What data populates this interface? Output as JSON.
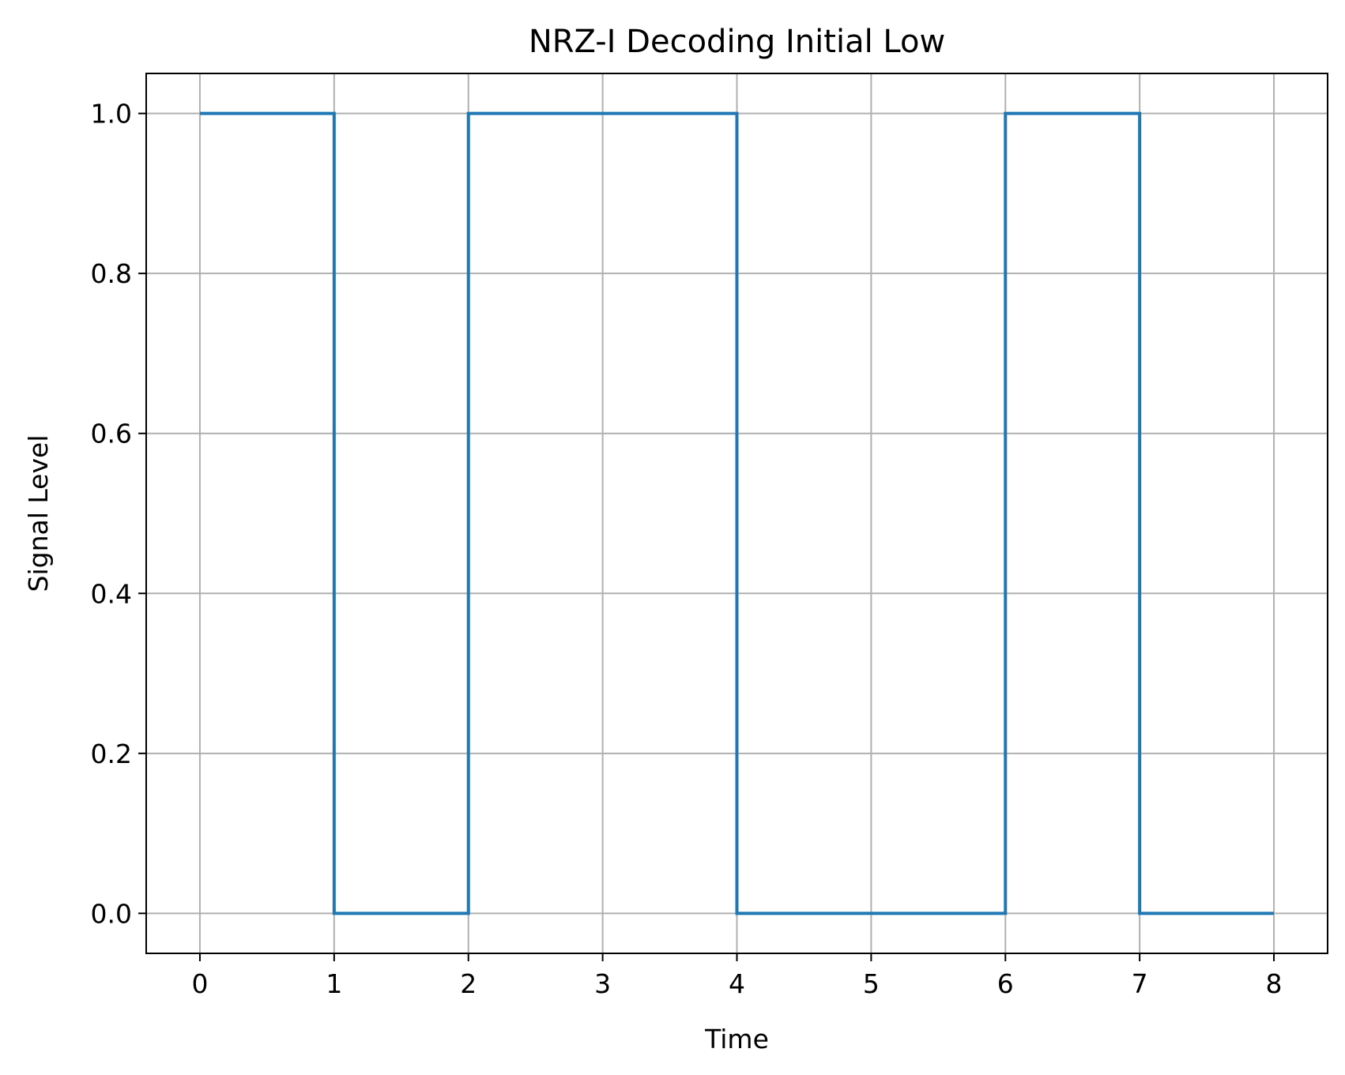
{
  "chart_data": {
    "type": "line",
    "drawstyle": "steps-post",
    "title": "NRZ-I Decoding Initial Low",
    "xlabel": "Time",
    "ylabel": "Signal Level",
    "xlim": [
      -0.4,
      8.4
    ],
    "ylim": [
      -0.05,
      1.05
    ],
    "xticks": [
      0,
      1,
      2,
      3,
      4,
      5,
      6,
      7,
      8
    ],
    "xtick_labels": [
      "0",
      "1",
      "2",
      "3",
      "4",
      "5",
      "6",
      "7",
      "8"
    ],
    "yticks": [
      0.0,
      0.2,
      0.4,
      0.6,
      0.8,
      1.0
    ],
    "ytick_labels": [
      "0.0",
      "0.2",
      "0.4",
      "0.6",
      "0.8",
      "1.0"
    ],
    "grid": true,
    "series": [
      {
        "color": "#1f77b4",
        "x": [
          0,
          1,
          2,
          3,
          4,
          5,
          6,
          7,
          8
        ],
        "y": [
          1,
          0,
          1,
          1,
          0,
          0,
          1,
          0,
          0
        ]
      }
    ]
  }
}
